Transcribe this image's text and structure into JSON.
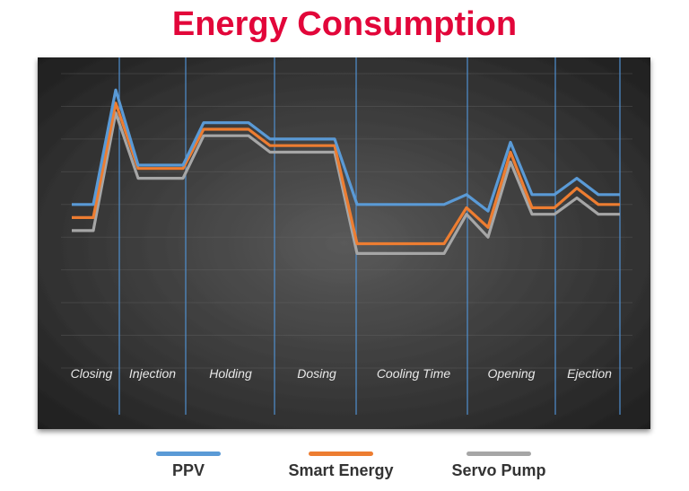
{
  "title": "Energy Consumption",
  "colors": {
    "title": "#e2063a",
    "panel_dark": "#1f1f1f",
    "panel_light": "#5a5a5a",
    "separator": "#4f8fcf"
  },
  "chart_data": {
    "type": "line",
    "title": "Energy Consumption",
    "xlabel": "",
    "ylabel": "",
    "grid": true,
    "legend_position": "bottom",
    "phases": [
      "Closing",
      "Injection",
      "Holding",
      "Dosing",
      "Cooling Time",
      "Opening",
      "Ejection"
    ],
    "x": [
      0,
      1,
      2,
      3,
      4,
      5,
      6,
      7,
      8,
      9,
      10,
      11,
      12,
      13,
      14,
      15,
      16,
      17,
      18,
      19,
      20,
      21,
      22,
      23,
      24,
      25
    ],
    "ylim": [
      0,
      9
    ],
    "series": [
      {
        "name": "PPV",
        "color": "#5a9ad6",
        "values": [
          5.0,
          5.0,
          8.5,
          6.2,
          6.2,
          6.2,
          7.5,
          7.5,
          7.5,
          7.0,
          7.0,
          7.0,
          7.0,
          5.0,
          5.0,
          5.0,
          5.0,
          5.0,
          5.3,
          4.8,
          6.9,
          5.3,
          5.3,
          5.8,
          5.3,
          5.3
        ]
      },
      {
        "name": "Smart Energy",
        "color": "#ed7d31",
        "values": [
          4.6,
          4.6,
          8.1,
          6.1,
          6.1,
          6.1,
          7.3,
          7.3,
          7.3,
          6.8,
          6.8,
          6.8,
          6.8,
          3.8,
          3.8,
          3.8,
          3.8,
          3.8,
          4.9,
          4.3,
          6.6,
          4.9,
          4.9,
          5.5,
          5.0,
          5.0
        ]
      },
      {
        "name": "Servo Pump",
        "color": "#a6a6a6",
        "values": [
          4.2,
          4.2,
          7.8,
          5.8,
          5.8,
          5.8,
          7.1,
          7.1,
          7.1,
          6.6,
          6.6,
          6.6,
          6.6,
          3.5,
          3.5,
          3.5,
          3.5,
          3.5,
          4.7,
          4.0,
          6.3,
          4.7,
          4.7,
          5.2,
          4.7,
          4.7
        ]
      }
    ]
  }
}
